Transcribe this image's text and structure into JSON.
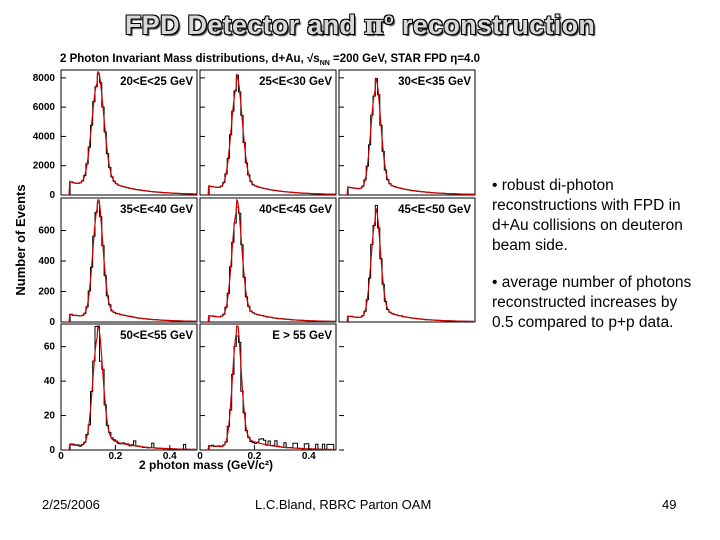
{
  "slide": {
    "title_prefix": "FPD Detector and ",
    "title_pi": "π",
    "title_zero": "o",
    "title_suffix": " reconstruction",
    "bullets": [
      "• robust di-photon reconstructions with FPD in d+Au collisions on deuteron beam side.",
      "• average number of photons reconstructed increases by 0.5 compared to p+p data."
    ],
    "footer": {
      "date": "2/25/2006",
      "author": "L.C.Bland, RBRC Parton OAM",
      "page": "49"
    }
  },
  "chart_data": {
    "type": "histogram-grid",
    "title_a": "2 Photon Invariant Mass distributions, d+Au, ",
    "title_b": "√s",
    "title_sub": "NN",
    "title_c": " =200 GeV, STAR FPD ",
    "title_eta": "η",
    "title_d": "=4.0",
    "ylabel": "Number of Events",
    "xlabel": "2 photon mass (GeV/c²)",
    "x_ticks": [
      "0",
      "0.2",
      "0.4"
    ],
    "xlim": [
      0,
      0.5
    ],
    "colors": {
      "data": "#000000",
      "fit": "#cc0000"
    },
    "rows": [
      {
        "ylim": [
          0,
          8400
        ],
        "y_ticks": [
          0,
          2000,
          4000,
          6000,
          8000
        ]
      },
      {
        "ylim": [
          0,
          800
        ],
        "y_ticks": [
          0,
          200,
          400,
          600
        ]
      },
      {
        "ylim": [
          0,
          72
        ],
        "y_ticks": [
          0,
          20,
          40,
          60
        ]
      }
    ],
    "panels": [
      {
        "label": "20<E<25 GeV",
        "row": 0,
        "col": 0,
        "peak": 7200,
        "mean": 0.135,
        "sigma": 0.022,
        "bg": 0.13,
        "tail": 0.12
      },
      {
        "label": "25<E<30 GeV",
        "row": 0,
        "col": 1,
        "peak": 7000,
        "mean": 0.135,
        "sigma": 0.02,
        "bg": 0.09,
        "tail": 0.12
      },
      {
        "label": "30<E<35 GeV",
        "row": 0,
        "col": 2,
        "peak": 6900,
        "mean": 0.135,
        "sigma": 0.018,
        "bg": 0.08,
        "tail": 0.12
      },
      {
        "label": "35<E<40 GeV",
        "row": 1,
        "col": 0,
        "peak": 720,
        "mean": 0.135,
        "sigma": 0.018,
        "bg": 0.07,
        "tail": 0.12
      },
      {
        "label": "40<E<45 GeV",
        "row": 1,
        "col": 1,
        "peak": 700,
        "mean": 0.135,
        "sigma": 0.018,
        "bg": 0.06,
        "tail": 0.12
      },
      {
        "label": "45<E<50 GeV",
        "row": 1,
        "col": 2,
        "peak": 650,
        "mean": 0.135,
        "sigma": 0.017,
        "bg": 0.06,
        "tail": 0.12
      },
      {
        "label": "50<E<55 GeV",
        "row": 2,
        "col": 0,
        "peak": 64,
        "mean": 0.135,
        "sigma": 0.018,
        "bg": 0.05,
        "tail": 0.12
      },
      {
        "label": "E > 55 GeV",
        "row": 2,
        "col": 1,
        "peak": 66,
        "mean": 0.135,
        "sigma": 0.016,
        "bg": 0.04,
        "tail": 0.12
      }
    ]
  }
}
